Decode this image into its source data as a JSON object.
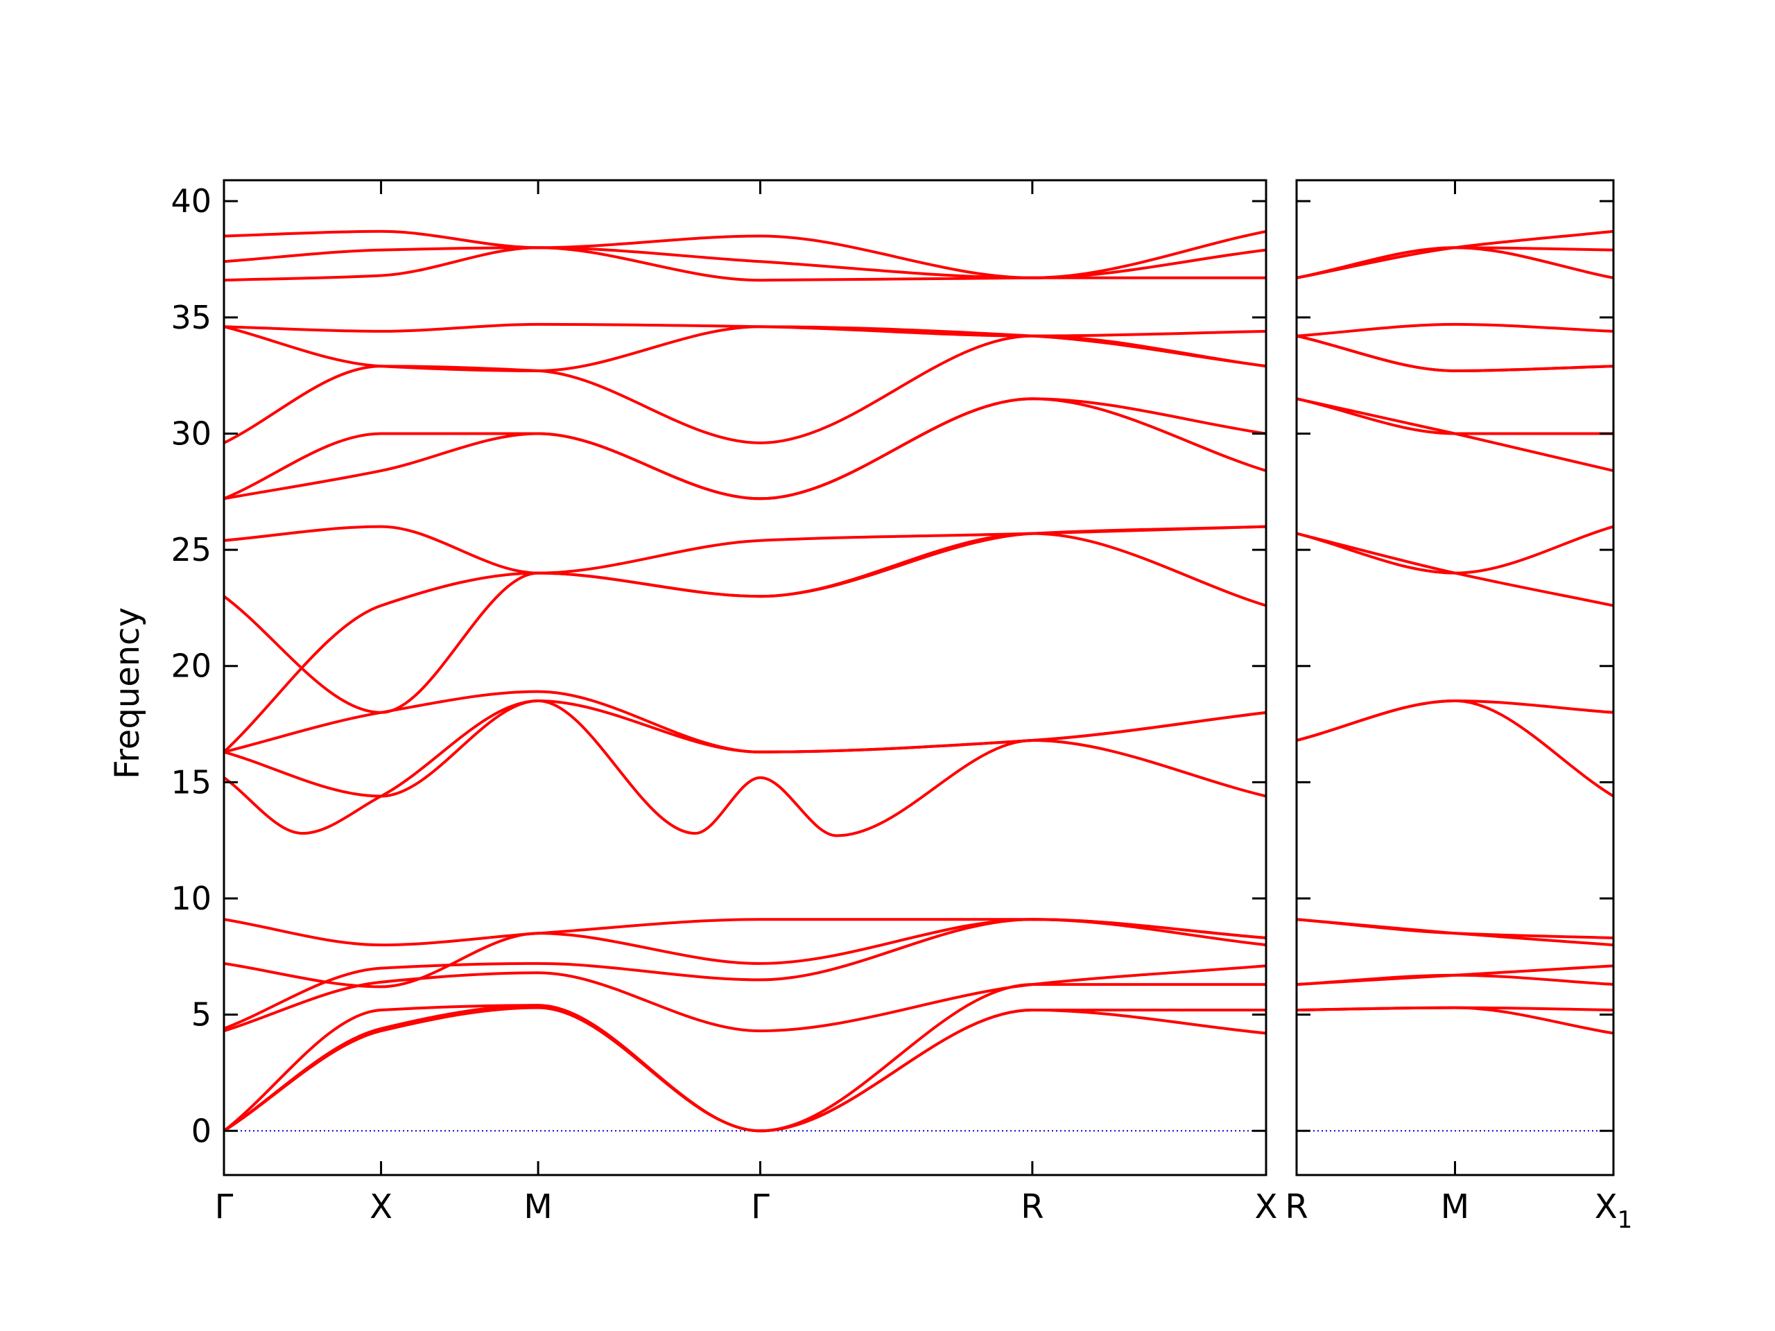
{
  "chart_data": {
    "type": "line",
    "title": "",
    "ylabel": "Frequency",
    "ylim": [
      -1.9,
      40.9
    ],
    "yticks": [
      0,
      5,
      10,
      15,
      20,
      25,
      30,
      35,
      40
    ],
    "colors": {
      "bands": "#ff0000",
      "zero_line": "#0000cc",
      "frame": "#000000"
    },
    "zero_line": "dotted",
    "grid": false,
    "panels": [
      {
        "xlim": [
          0,
          3.317
        ],
        "tick_positions": [
          0,
          0.5,
          1.0,
          1.707,
          2.573,
          3.317
        ],
        "tick_labels": [
          "Γ",
          "X",
          "M",
          "Γ",
          "R",
          "X"
        ],
        "bands": [
          {
            "x": [
              0,
              0.5,
              1.0,
              1.707,
              2.573,
              3.317
            ],
            "y": [
              0,
              4.3,
              5.3,
              0,
              5.2,
              4.2
            ]
          },
          {
            "x": [
              0,
              0.5,
              1.0,
              1.707,
              2.573,
              3.317
            ],
            "y": [
              0,
              4.4,
              5.4,
              0,
              5.2,
              5.2
            ]
          },
          {
            "x": [
              0,
              0.5,
              1.0,
              1.707,
              2.573,
              3.317
            ],
            "y": [
              0,
              5.2,
              5.4,
              0,
              6.3,
              6.3
            ]
          },
          {
            "x": [
              0,
              0.5,
              1.0,
              1.707,
              2.573,
              3.317
            ],
            "y": [
              4.3,
              6.4,
              6.8,
              4.3,
              6.3,
              7.1
            ]
          },
          {
            "x": [
              0,
              0.5,
              1.0,
              1.707,
              2.573,
              3.317
            ],
            "y": [
              4.4,
              7.0,
              7.2,
              6.5,
              9.1,
              8.0
            ]
          },
          {
            "x": [
              0,
              0.5,
              1.0,
              1.707,
              2.573,
              3.317
            ],
            "y": [
              7.2,
              6.2,
              8.5,
              7.2,
              9.1,
              8.3
            ]
          },
          {
            "x": [
              0,
              0.5,
              1.0,
              1.707,
              2.573,
              3.317
            ],
            "y": [
              9.1,
              8.0,
              8.5,
              9.1,
              9.1,
              8.3
            ]
          },
          {
            "x": [
              0,
              0.25,
              0.5,
              1.0,
              1.5,
              1.707,
              1.95,
              2.573,
              3.317
            ],
            "y": [
              15.2,
              12.8,
              14.4,
              18.5,
              12.8,
              15.2,
              12.7,
              16.8,
              14.4
            ]
          },
          {
            "x": [
              0,
              0.5,
              1.0,
              1.707,
              2.573,
              3.317
            ],
            "y": [
              16.3,
              14.4,
              18.5,
              16.3,
              16.8,
              18.0
            ]
          },
          {
            "x": [
              0,
              0.5,
              1.0,
              1.707,
              2.573,
              3.317
            ],
            "y": [
              16.3,
              18.0,
              18.9,
              16.3,
              16.8,
              18.0
            ]
          },
          {
            "x": [
              0,
              0.5,
              1.0,
              1.707,
              2.573,
              3.317
            ],
            "y": [
              16.3,
              22.6,
              24.0,
              23.0,
              25.7,
              22.6
            ]
          },
          {
            "x": [
              0,
              0.5,
              1.0,
              1.707,
              2.573,
              3.317
            ],
            "y": [
              23.0,
              18.0,
              24.0,
              23.0,
              25.7,
              26.0
            ]
          },
          {
            "x": [
              0,
              0.5,
              1.0,
              1.707,
              2.573,
              3.317
            ],
            "y": [
              25.4,
              26.0,
              24.0,
              25.4,
              25.7,
              26.0
            ]
          },
          {
            "x": [
              0,
              0.5,
              1.0,
              1.707,
              2.573,
              3.317
            ],
            "y": [
              27.2,
              28.4,
              30.0,
              27.2,
              31.5,
              28.4
            ]
          },
          {
            "x": [
              0,
              0.5,
              1.0,
              1.707,
              2.573,
              3.317
            ],
            "y": [
              27.2,
              30.0,
              30.0,
              27.2,
              31.5,
              30.0
            ]
          },
          {
            "x": [
              0,
              0.5,
              1.0,
              1.707,
              2.573,
              3.317
            ],
            "y": [
              29.6,
              32.9,
              32.7,
              29.6,
              34.2,
              32.9
            ]
          },
          {
            "x": [
              0,
              0.5,
              1.0,
              1.707,
              2.573,
              3.317
            ],
            "y": [
              34.6,
              32.9,
              32.7,
              34.6,
              34.2,
              32.9
            ]
          },
          {
            "x": [
              0,
              0.5,
              1.0,
              1.707,
              2.573,
              3.317
            ],
            "y": [
              34.6,
              34.4,
              34.7,
              34.6,
              34.2,
              34.4
            ]
          },
          {
            "x": [
              0,
              0.5,
              1.0,
              1.707,
              2.573,
              3.317
            ],
            "y": [
              36.6,
              36.8,
              38.0,
              36.6,
              36.7,
              36.7
            ]
          },
          {
            "x": [
              0,
              0.5,
              1.0,
              1.707,
              2.573,
              3.317
            ],
            "y": [
              37.4,
              37.9,
              38.0,
              37.4,
              36.7,
              37.9
            ]
          },
          {
            "x": [
              0,
              0.5,
              1.0,
              1.707,
              2.573,
              3.317
            ],
            "y": [
              38.5,
              38.7,
              38.0,
              38.5,
              36.7,
              38.7
            ]
          }
        ]
      },
      {
        "xlim": [
          0,
          1.0
        ],
        "tick_positions": [
          0,
          0.5,
          1.0
        ],
        "tick_labels": [
          "R",
          "M",
          "X"
        ],
        "tick_subscripts": [
          "",
          "",
          "1"
        ],
        "bands": [
          {
            "x": [
              0,
              0.5,
              1.0
            ],
            "y": [
              5.2,
              5.3,
              4.2
            ]
          },
          {
            "x": [
              0,
              0.5,
              1.0
            ],
            "y": [
              5.2,
              5.3,
              5.2
            ]
          },
          {
            "x": [
              0,
              0.5,
              1.0
            ],
            "y": [
              6.3,
              6.7,
              6.3
            ]
          },
          {
            "x": [
              0,
              0.5,
              1.0
            ],
            "y": [
              6.3,
              6.7,
              7.1
            ]
          },
          {
            "x": [
              0,
              0.5,
              1.0
            ],
            "y": [
              9.1,
              8.5,
              8.0
            ]
          },
          {
            "x": [
              0,
              0.5,
              1.0
            ],
            "y": [
              9.1,
              8.5,
              8.3
            ]
          },
          {
            "x": [
              0,
              0.5,
              1.0
            ],
            "y": [
              16.8,
              18.5,
              14.4
            ]
          },
          {
            "x": [
              0,
              0.5,
              1.0
            ],
            "y": [
              16.8,
              18.5,
              18.0
            ]
          },
          {
            "x": [
              0,
              0.5,
              1.0
            ],
            "y": [
              25.7,
              24.0,
              22.6
            ]
          },
          {
            "x": [
              0,
              0.5,
              1.0
            ],
            "y": [
              25.7,
              24.0,
              26.0
            ]
          },
          {
            "x": [
              0,
              0.5,
              1.0
            ],
            "y": [
              31.5,
              30.0,
              28.4
            ]
          },
          {
            "x": [
              0,
              0.5,
              1.0
            ],
            "y": [
              31.5,
              30.0,
              30.0
            ]
          },
          {
            "x": [
              0,
              0.5,
              1.0
            ],
            "y": [
              34.2,
              32.7,
              32.9
            ]
          },
          {
            "x": [
              0,
              0.5,
              1.0
            ],
            "y": [
              34.2,
              32.7,
              32.9
            ]
          },
          {
            "x": [
              0,
              0.5,
              1.0
            ],
            "y": [
              34.2,
              34.7,
              34.4
            ]
          },
          {
            "x": [
              0,
              0.5,
              1.0
            ],
            "y": [
              36.7,
              38.0,
              36.7
            ]
          },
          {
            "x": [
              0,
              0.5,
              1.0
            ],
            "y": [
              36.7,
              38.0,
              37.9
            ]
          },
          {
            "x": [
              0,
              0.5,
              1.0
            ],
            "y": [
              36.7,
              38.0,
              38.7
            ]
          }
        ]
      }
    ]
  }
}
